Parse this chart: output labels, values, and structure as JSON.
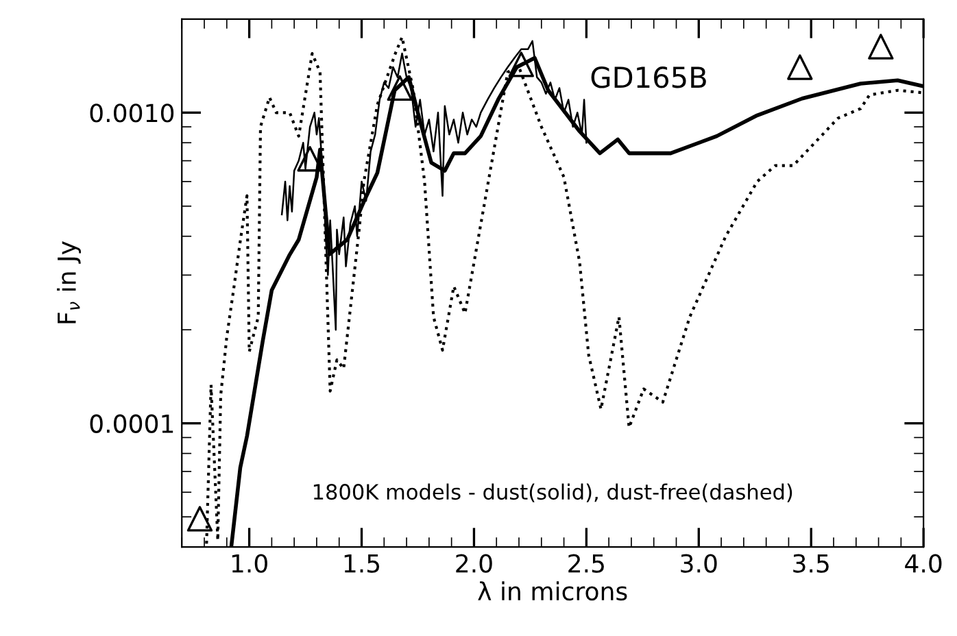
{
  "chart_data": {
    "type": "line",
    "xlabel": "λ in microns",
    "ylabel": "F$_{ν}$ in Jy",
    "annotations": [
      "GD165B",
      "1800K models - dust(solid), dust-free(dashed)"
    ],
    "log": "y",
    "xlim": [
      0.7,
      4.0
    ],
    "ylim": [
      4e-05,
      0.002
    ],
    "xticks": [
      {
        "value": 1.0,
        "label": "1.0"
      },
      {
        "value": 1.5,
        "label": "1.5"
      },
      {
        "value": 2.0,
        "label": "2.0"
      },
      {
        "value": 2.5,
        "label": "2.5"
      },
      {
        "value": 3.0,
        "label": "3.0"
      },
      {
        "value": 3.5,
        "label": "3.5"
      },
      {
        "value": 4.0,
        "label": "4.0"
      }
    ],
    "yticks": [
      {
        "value": 0.0001,
        "label": "0.0001"
      },
      {
        "value": 0.001,
        "label": "0.0010"
      }
    ],
    "grid": false,
    "series": [
      {
        "color": "#000000",
        "line_style": "solid",
        "x": [
          1.145,
          1.16,
          1.17,
          1.18,
          1.19,
          1.2,
          1.22,
          1.24,
          1.25,
          1.27,
          1.29,
          1.3,
          1.31,
          1.33,
          1.34,
          1.35,
          1.36,
          1.37,
          1.385,
          1.39,
          1.4,
          1.42,
          1.43,
          1.45,
          1.47,
          1.48,
          1.5,
          1.52,
          1.54,
          1.56,
          1.58,
          1.6,
          1.62,
          1.64,
          1.66,
          1.68,
          1.7,
          1.72,
          1.74,
          1.76,
          1.78,
          1.8,
          1.82,
          1.84,
          1.86,
          1.87,
          1.89,
          1.91,
          1.93,
          1.95,
          1.97,
          1.99,
          2.01,
          2.03,
          2.06,
          2.09,
          2.12,
          2.15,
          2.18,
          2.21,
          2.24,
          2.26,
          2.28,
          2.3,
          2.32,
          2.34,
          2.36,
          2.38,
          2.4,
          2.42,
          2.44,
          2.46,
          2.48,
          2.49,
          2.5
        ],
        "values": [
          0.00047,
          0.0006,
          0.00045,
          0.00058,
          0.00048,
          0.00065,
          0.0007,
          0.0008,
          0.00066,
          0.0009,
          0.001,
          0.00085,
          0.00096,
          0.0006,
          0.0004,
          0.0003,
          0.00045,
          0.00033,
          0.0002,
          0.00042,
          0.00035,
          0.00046,
          0.00032,
          0.00044,
          0.0005,
          0.0004,
          0.0006,
          0.00052,
          0.00075,
          0.00085,
          0.0011,
          0.00125,
          0.0012,
          0.0014,
          0.0013,
          0.00155,
          0.0013,
          0.0012,
          0.0009,
          0.0011,
          0.00085,
          0.00095,
          0.00075,
          0.001,
          0.00054,
          0.00105,
          0.00085,
          0.00095,
          0.0008,
          0.001,
          0.00085,
          0.00095,
          0.0009,
          0.001,
          0.0011,
          0.0012,
          0.0013,
          0.0014,
          0.0015,
          0.0016,
          0.0016,
          0.0017,
          0.0013,
          0.00125,
          0.00115,
          0.00125,
          0.0011,
          0.0012,
          0.001,
          0.0011,
          0.0009,
          0.001,
          0.00085,
          0.0011,
          0.0008
        ]
      },
      {
        "color": "#000000",
        "line_style": "solid",
        "x": [
          0.92,
          0.96,
          0.99,
          1.06,
          1.1,
          1.18,
          1.22,
          1.3,
          1.315,
          1.357,
          1.436,
          1.514,
          1.57,
          1.647,
          1.71,
          1.75,
          1.81,
          1.87,
          1.91,
          1.96,
          2.03,
          2.11,
          2.19,
          2.27,
          2.33,
          2.47,
          2.56,
          2.64,
          2.69,
          2.875,
          3.08,
          3.26,
          3.46,
          3.72,
          3.885,
          3.99
        ],
        "values": [
          4e-05,
          7.2e-05,
          9.1e-05,
          0.000184,
          0.000268,
          0.000349,
          0.00039,
          0.00062,
          0.00076,
          0.00035,
          0.00039,
          0.000525,
          0.00064,
          0.00118,
          0.0013,
          0.001,
          0.00069,
          0.00065,
          0.00074,
          0.00074,
          0.00084,
          0.00111,
          0.0014,
          0.0015,
          0.00118,
          0.00087,
          0.00074,
          0.00082,
          0.00074,
          0.00074,
          0.00084,
          0.00098,
          0.00111,
          0.00124,
          0.00127,
          0.00122
        ]
      },
      {
        "color": "#000000",
        "line_style": "dotted",
        "x": [
          0.81,
          0.83,
          0.86,
          0.873,
          0.9,
          0.93,
          0.96,
          0.99,
          1.0,
          1.04,
          1.05,
          1.09,
          1.12,
          1.18,
          1.22,
          1.28,
          1.315,
          1.36,
          1.39,
          1.42,
          1.49,
          1.51,
          1.57,
          1.65,
          1.68,
          1.73,
          1.78,
          1.82,
          1.86,
          1.91,
          1.96,
          2.15,
          2.2,
          2.3,
          2.4,
          2.47,
          2.51,
          2.565,
          2.645,
          2.69,
          2.755,
          2.84,
          2.96,
          3.12,
          3.26,
          3.34,
          3.42,
          3.62,
          3.72,
          3.76,
          3.885,
          3.99
        ],
        "values": [
          4.1e-05,
          0.000133,
          4.2e-05,
          0.000123,
          0.00019,
          0.000268,
          0.000386,
          0.00054,
          0.00017,
          0.00022,
          0.0009,
          0.00112,
          0.001,
          0.001,
          0.00084,
          0.00155,
          0.00135,
          0.000127,
          0.00016,
          0.00015,
          0.000427,
          0.0006,
          0.00106,
          0.00155,
          0.00175,
          0.00118,
          0.0006,
          0.00022,
          0.000172,
          0.000276,
          0.000226,
          0.00135,
          0.0014,
          0.0009,
          0.00062,
          0.00033,
          0.000166,
          0.000111,
          0.00022,
          9.7e-05,
          0.000129,
          0.000117,
          0.00022,
          0.0004,
          0.0006,
          0.000675,
          0.000675,
          0.00096,
          0.00103,
          0.00114,
          0.00118,
          0.00116
        ]
      },
      {
        "type": "scatter",
        "color": "#000000",
        "marker": "triangle",
        "x": [
          0.78,
          1.27,
          1.67,
          2.21,
          3.45,
          3.81
        ],
        "values": [
          4.93e-05,
          0.00071,
          0.0012,
          0.00143,
          0.0014,
          0.00163
        ]
      }
    ]
  }
}
